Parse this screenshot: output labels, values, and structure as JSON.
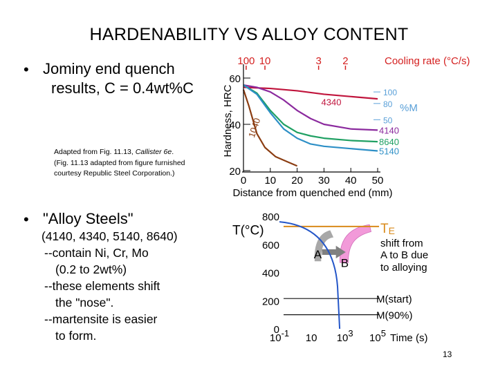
{
  "slide": {
    "title": "HARDENABILITY VS ALLOY CONTENT",
    "bullet_symbol": "•",
    "bullet1": {
      "line1": "Jominy end quench",
      "line2": "results, C = 0.4wt%C"
    },
    "caption": {
      "line1_prefix": "Adapted from Fig. 11.13, ",
      "line1_italic": "Callister 6e",
      "line1_suffix": ".",
      "line2": "(Fig. 11.13 adapted from figure furnished",
      "line3": "courtesy Republic Steel Corporation.)"
    },
    "bullet2": {
      "line1": "\"Alloy Steels\"",
      "line2": "(4140, 4340, 5140, 8640)",
      "line3": "--contain Ni, Cr, Mo",
      "line4": "(0.2 to 2wt%)",
      "line5": "--these elements shift",
      "line6": "the \"nose\".",
      "line7": "--martensite is easier",
      "line8": "to form."
    },
    "page_number": "13"
  },
  "chart_data": [
    {
      "type": "line",
      "title": "",
      "xlabel": "Distance from quenched end (mm)",
      "ylabel": "Hardness, HRC",
      "xlim": [
        0,
        50
      ],
      "ylim": [
        20,
        60
      ],
      "xticks": [
        0,
        10,
        20,
        30,
        40,
        50
      ],
      "yticks": [
        20,
        40,
        60
      ],
      "top_axis": {
        "label": "Cooling rate (°C/s)",
        "ticks": [
          {
            "label": "100",
            "x": 1
          },
          {
            "label": "10",
            "x": 8
          },
          {
            "label": "3",
            "x": 28
          },
          {
            "label": "2",
            "x": 38
          }
        ]
      },
      "right_axis": {
        "label": "%M",
        "ticks": [
          {
            "label": "100",
            "y": 54
          },
          {
            "label": "80",
            "y": 49
          },
          {
            "label": "50",
            "y": 42
          }
        ]
      },
      "series": [
        {
          "name": "4340",
          "color": "#c0143c",
          "x": [
            0,
            10,
            20,
            30,
            40,
            50
          ],
          "y": [
            56,
            55.5,
            54.5,
            53,
            52,
            51
          ]
        },
        {
          "name": "4140",
          "color": "#8b2a9e",
          "x": [
            0,
            5,
            10,
            15,
            20,
            25,
            30,
            40,
            50
          ],
          "y": [
            57,
            56,
            54,
            50.5,
            46,
            42.5,
            40,
            38,
            37.5
          ]
        },
        {
          "name": "8640",
          "color": "#1fa063",
          "x": [
            0,
            5,
            10,
            15,
            20,
            25,
            30,
            40,
            50
          ],
          "y": [
            57,
            53.5,
            46,
            40,
            36.5,
            35,
            34,
            33,
            32.5
          ]
        },
        {
          "name": "5140",
          "color": "#2d8fc6",
          "x": [
            0,
            5,
            10,
            15,
            20,
            25,
            30,
            40,
            50
          ],
          "y": [
            57,
            53,
            45,
            38,
            34,
            31.5,
            30.5,
            29.5,
            28.5
          ]
        },
        {
          "name": "1040",
          "color": "#8b3d12",
          "x": [
            0,
            2,
            5,
            8,
            12,
            16,
            20
          ],
          "y": [
            55,
            48,
            36,
            30,
            26,
            24,
            22
          ]
        }
      ],
      "colors": {
        "cooling_rate": "#d42020",
        "percent_martensite": "#5aa0d8"
      }
    },
    {
      "type": "line",
      "title": "",
      "xlabel": "Time (s)",
      "ylabel": "T(°C)",
      "xscale": "log",
      "xlim": [
        "10^-1",
        "10^5"
      ],
      "ylim": [
        0,
        800
      ],
      "xticks": [
        {
          "base": "10",
          "exp": "-1"
        },
        {
          "base": "10",
          "exp": ""
        },
        {
          "base": "10",
          "exp": "3"
        },
        {
          "base": "10",
          "exp": "5"
        }
      ],
      "yticks": [
        0,
        200,
        400,
        600,
        800
      ],
      "reference_lines": [
        {
          "label": "T",
          "sub": "E",
          "y": 727,
          "color": "#d98a1a"
        },
        {
          "label": "M(start)",
          "y": 215,
          "color": "#111111"
        },
        {
          "label": "M(90%)",
          "y": 100,
          "color": "#111111"
        }
      ],
      "regions": [
        {
          "label": "A",
          "color": "#a8a8a8"
        },
        {
          "label": "B",
          "color": "#f29ad9"
        }
      ],
      "annotation": {
        "line1": "shift from",
        "line2": "A to B due",
        "line3": "to alloying",
        "arrow_color": "#808080"
      },
      "cooling_curve_color": "#2456c8"
    }
  ]
}
